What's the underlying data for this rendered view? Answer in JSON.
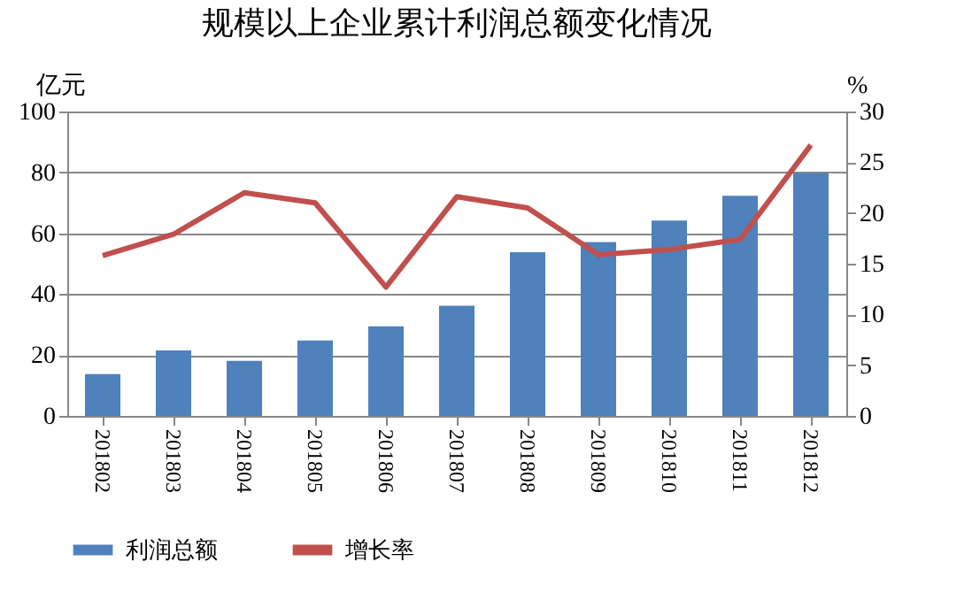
{
  "chart_data": {
    "type": "bar",
    "title": "规模以上企业累计利润总额变化情况",
    "ylabel": "亿元",
    "y2label": "%",
    "categories": [
      "201802",
      "201803",
      "201804",
      "201805",
      "201806",
      "201807",
      "201808",
      "201809",
      "201810",
      "201811",
      "201812"
    ],
    "series": [
      {
        "name": "利润总额",
        "type": "bar",
        "color": "#4f81bd",
        "values": [
          13.7,
          21.5,
          18.1,
          24.8,
          29.4,
          36.2,
          53.8,
          57.1,
          64.2,
          72.3,
          79.8
        ]
      },
      {
        "name": "增长率",
        "type": "line",
        "axis": "y2",
        "color": "#c0504d",
        "values": [
          15.8,
          17.9,
          22.0,
          21.0,
          12.7,
          21.6,
          20.5,
          15.9,
          16.4,
          17.4,
          26.7
        ]
      }
    ],
    "ylim": [
      0,
      100
    ],
    "yticks": [
      0,
      20,
      40,
      60,
      80,
      100
    ],
    "y2lim": [
      0,
      30
    ],
    "y2ticks": [
      0,
      5,
      10,
      15,
      20,
      25,
      30
    ],
    "grid": "y",
    "legend": "bottom",
    "marker": "none"
  }
}
